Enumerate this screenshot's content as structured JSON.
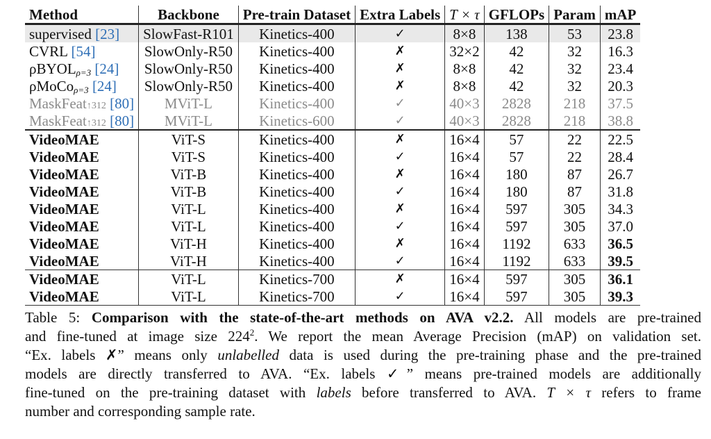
{
  "table": {
    "headers": [
      "Method",
      "Backbone",
      "Pre-train Dataset",
      "Extra Labels",
      "T × τ",
      "GFLOPs",
      "Param",
      "mAP"
    ],
    "rows": [
      {
        "method": "supervised",
        "sub": "",
        "small": "",
        "ref": "[23]",
        "backbone": "SlowFast-R101",
        "dataset": "Kinetics-400",
        "extra": "✓",
        "ttau": "8×8",
        "gflops": "138",
        "param": "53",
        "map": "23.8",
        "style": "highlight"
      },
      {
        "method": "CVRL",
        "sub": "",
        "small": "",
        "ref": "[54]",
        "backbone": "SlowOnly-R50",
        "dataset": "Kinetics-400",
        "extra": "✗",
        "ttau": "32×2",
        "gflops": "42",
        "param": "32",
        "map": "16.3",
        "style": ""
      },
      {
        "method": "ρBYOL",
        "sub": "ρ=3",
        "small": "",
        "ref": "[24]",
        "backbone": "SlowOnly-R50",
        "dataset": "Kinetics-400",
        "extra": "✗",
        "ttau": "8×8",
        "gflops": "42",
        "param": "32",
        "map": "23.4",
        "style": ""
      },
      {
        "method": "ρMoCo",
        "sub": "ρ=3",
        "small": "",
        "ref": "[24]",
        "backbone": "SlowOnly-R50",
        "dataset": "Kinetics-400",
        "extra": "✗",
        "ttau": "8×8",
        "gflops": "42",
        "param": "32",
        "map": "20.3",
        "style": ""
      },
      {
        "method": "MaskFeat",
        "sub": "",
        "small": "↑312",
        "ref": "[80]",
        "backbone": "MViT-L",
        "dataset": "Kinetics-400",
        "extra": "✓",
        "ttau": "40×3",
        "gflops": "2828",
        "param": "218",
        "map": "37.5",
        "style": "gray"
      },
      {
        "method": "MaskFeat",
        "sub": "",
        "small": "↑312",
        "ref": "[80]",
        "backbone": "MViT-L",
        "dataset": "Kinetics-600",
        "extra": "✓",
        "ttau": "40×3",
        "gflops": "2828",
        "param": "218",
        "map": "38.8",
        "style": "gray"
      },
      {
        "method": "VideoMAE",
        "sub": "",
        "small": "",
        "ref": "",
        "backbone": "ViT-S",
        "dataset": "Kinetics-400",
        "extra": "✗",
        "ttau": "16×4",
        "gflops": "57",
        "param": "22",
        "map": "22.5",
        "style": "ours sep"
      },
      {
        "method": "VideoMAE",
        "sub": "",
        "small": "",
        "ref": "",
        "backbone": "ViT-S",
        "dataset": "Kinetics-400",
        "extra": "✓",
        "ttau": "16×4",
        "gflops": "57",
        "param": "22",
        "map": "28.4",
        "style": "ours"
      },
      {
        "method": "VideoMAE",
        "sub": "",
        "small": "",
        "ref": "",
        "backbone": "ViT-B",
        "dataset": "Kinetics-400",
        "extra": "✗",
        "ttau": "16×4",
        "gflops": "180",
        "param": "87",
        "map": "26.7",
        "style": "ours"
      },
      {
        "method": "VideoMAE",
        "sub": "",
        "small": "",
        "ref": "",
        "backbone": "ViT-B",
        "dataset": "Kinetics-400",
        "extra": "✓",
        "ttau": "16×4",
        "gflops": "180",
        "param": "87",
        "map": "31.8",
        "style": "ours"
      },
      {
        "method": "VideoMAE",
        "sub": "",
        "small": "",
        "ref": "",
        "backbone": "ViT-L",
        "dataset": "Kinetics-400",
        "extra": "✗",
        "ttau": "16×4",
        "gflops": "597",
        "param": "305",
        "map": "34.3",
        "style": "ours"
      },
      {
        "method": "VideoMAE",
        "sub": "",
        "small": "",
        "ref": "",
        "backbone": "ViT-L",
        "dataset": "Kinetics-400",
        "extra": "✓",
        "ttau": "16×4",
        "gflops": "597",
        "param": "305",
        "map": "37.0",
        "style": "ours"
      },
      {
        "method": "VideoMAE",
        "sub": "",
        "small": "",
        "ref": "",
        "backbone": "ViT-H",
        "dataset": "Kinetics-400",
        "extra": "✗",
        "ttau": "16×4",
        "gflops": "1192",
        "param": "633",
        "map": "36.5",
        "style": "ours mapbold"
      },
      {
        "method": "VideoMAE",
        "sub": "",
        "small": "",
        "ref": "",
        "backbone": "ViT-H",
        "dataset": "Kinetics-400",
        "extra": "✓",
        "ttau": "16×4",
        "gflops": "1192",
        "param": "633",
        "map": "39.5",
        "style": "ours mapbold"
      },
      {
        "method": "VideoMAE",
        "sub": "",
        "small": "",
        "ref": "",
        "backbone": "ViT-L",
        "dataset": "Kinetics-700",
        "extra": "✗",
        "ttau": "16×4",
        "gflops": "597",
        "param": "305",
        "map": "36.1",
        "style": "ours mapbold sep2"
      },
      {
        "method": "VideoMAE",
        "sub": "",
        "small": "",
        "ref": "",
        "backbone": "ViT-L",
        "dataset": "Kinetics-700",
        "extra": "✓",
        "ttau": "16×4",
        "gflops": "597",
        "param": "305",
        "map": "39.3",
        "style": "ours mapbold last"
      }
    ]
  },
  "caption": {
    "label": "Table 5: ",
    "bold": "Comparison with the state-of-the-art methods on AVA v2.2.",
    "l1_rest": " All models are pre-trained",
    "l2a": "and fine-tuned at image size 224",
    "l2sup": "2",
    "l2b": ". We report the mean Average Precision (mAP) on validation set.",
    "l3a": "“Ex. labels ✗” means only ",
    "l3i": "unlabelled",
    "l3b": " data is used during the pre-training phase and the pre-trained",
    "l4": "models are directly transferred to AVA. “Ex. labels ✓” means pre-trained models are additionally",
    "l5a": "fine-tuned on the pre-training dataset with ",
    "l5i": "labels",
    "l5b": " before transferred to AVA. ",
    "l5m": "T × τ",
    "l5c": " refers to frame",
    "l6": "number and corresponding sample rate."
  }
}
